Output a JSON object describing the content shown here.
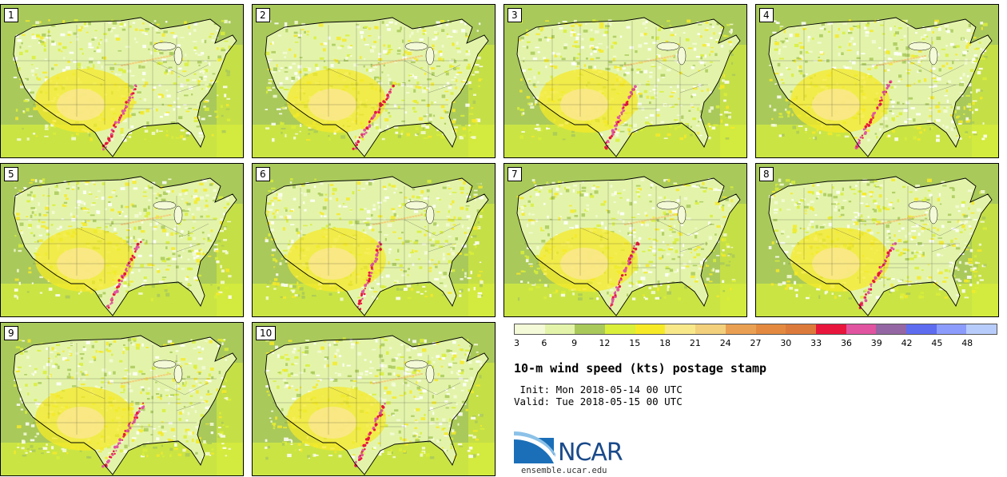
{
  "members": [
    "1",
    "2",
    "3",
    "4",
    "5",
    "6",
    "7",
    "8",
    "9",
    "10"
  ],
  "colorbar": {
    "ticks": [
      "3",
      "6",
      "9",
      "12",
      "15",
      "18",
      "21",
      "24",
      "27",
      "30",
      "33",
      "36",
      "39",
      "42",
      "45",
      "48"
    ],
    "colors": [
      "#f4fad8",
      "#e3f4aa",
      "#a9c95b",
      "#d9ef3a",
      "#f6ea28",
      "#f9e88a",
      "#f2d07c",
      "#eaa052",
      "#e38a40",
      "#dc7a3c",
      "#e8163c",
      "#e054a0",
      "#9466a4",
      "#5e6cf0",
      "#8c9cfc",
      "#b8ccfc"
    ]
  },
  "title": "10-m wind speed (kts) postage stamp",
  "init": " Init: Mon 2018-05-14 00 UTC",
  "valid": "Valid: Tue 2018-05-15 00 UTC",
  "logo": "NCAR",
  "site": "ensemble.ucar.edu"
}
